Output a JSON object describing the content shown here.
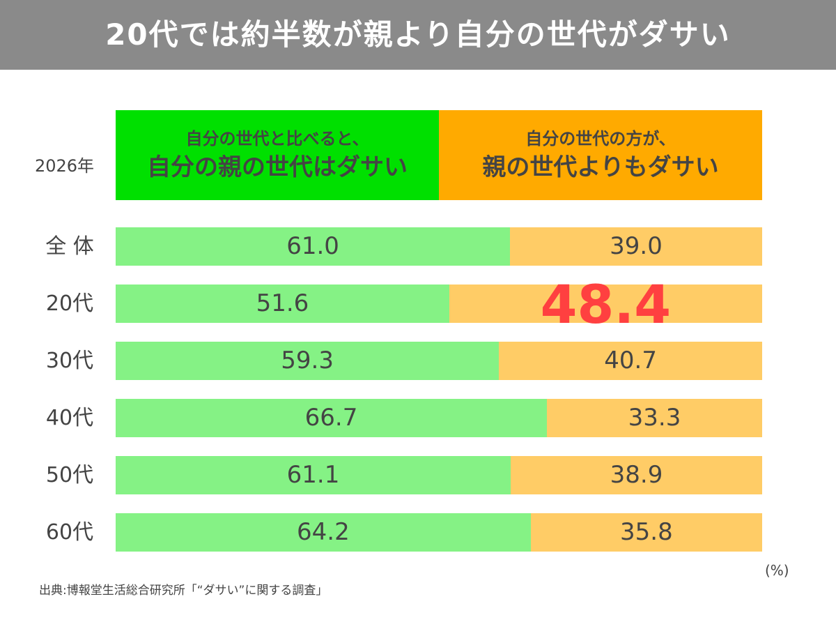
{
  "title": "20代では約半数が親より自分の世代がダサい",
  "chart_data": {
    "type": "bar",
    "stacked": "100%",
    "orientation": "horizontal",
    "title": "20代では約半数が親より自分の世代がダサい",
    "year_label": "2026年",
    "categories": [
      "全 体",
      "20代",
      "30代",
      "40代",
      "50代",
      "60代"
    ],
    "series": [
      {
        "name_small": "自分の世代と比べると、",
        "name": "自分の親の世代はダサい",
        "legend_color": "#00e000",
        "bar_color": "#85f285",
        "values": [
          61.0,
          51.6,
          59.3,
          66.7,
          61.1,
          64.2
        ]
      },
      {
        "name_small": "自分の世代の方が、",
        "name": "親の世代よりもダサい",
        "legend_color": "#ffaa00",
        "bar_color": "#ffcc66",
        "values": [
          39.0,
          48.4,
          40.7,
          33.3,
          38.9,
          35.8
        ]
      }
    ],
    "labels": [
      [
        "61.0",
        "39.0"
      ],
      [
        "51.6",
        "48.4"
      ],
      [
        "59.3",
        "40.7"
      ],
      [
        "66.7",
        "33.3"
      ],
      [
        "61.1",
        "38.9"
      ],
      [
        "64.2",
        "35.8"
      ]
    ],
    "highlight": {
      "category": "20代",
      "series": 1,
      "color": "#ff4040"
    },
    "unit": "(%)",
    "xlim": [
      0,
      100
    ]
  },
  "source": "出典:博報堂生活総合研究所「“ダサい”に関する調査」"
}
